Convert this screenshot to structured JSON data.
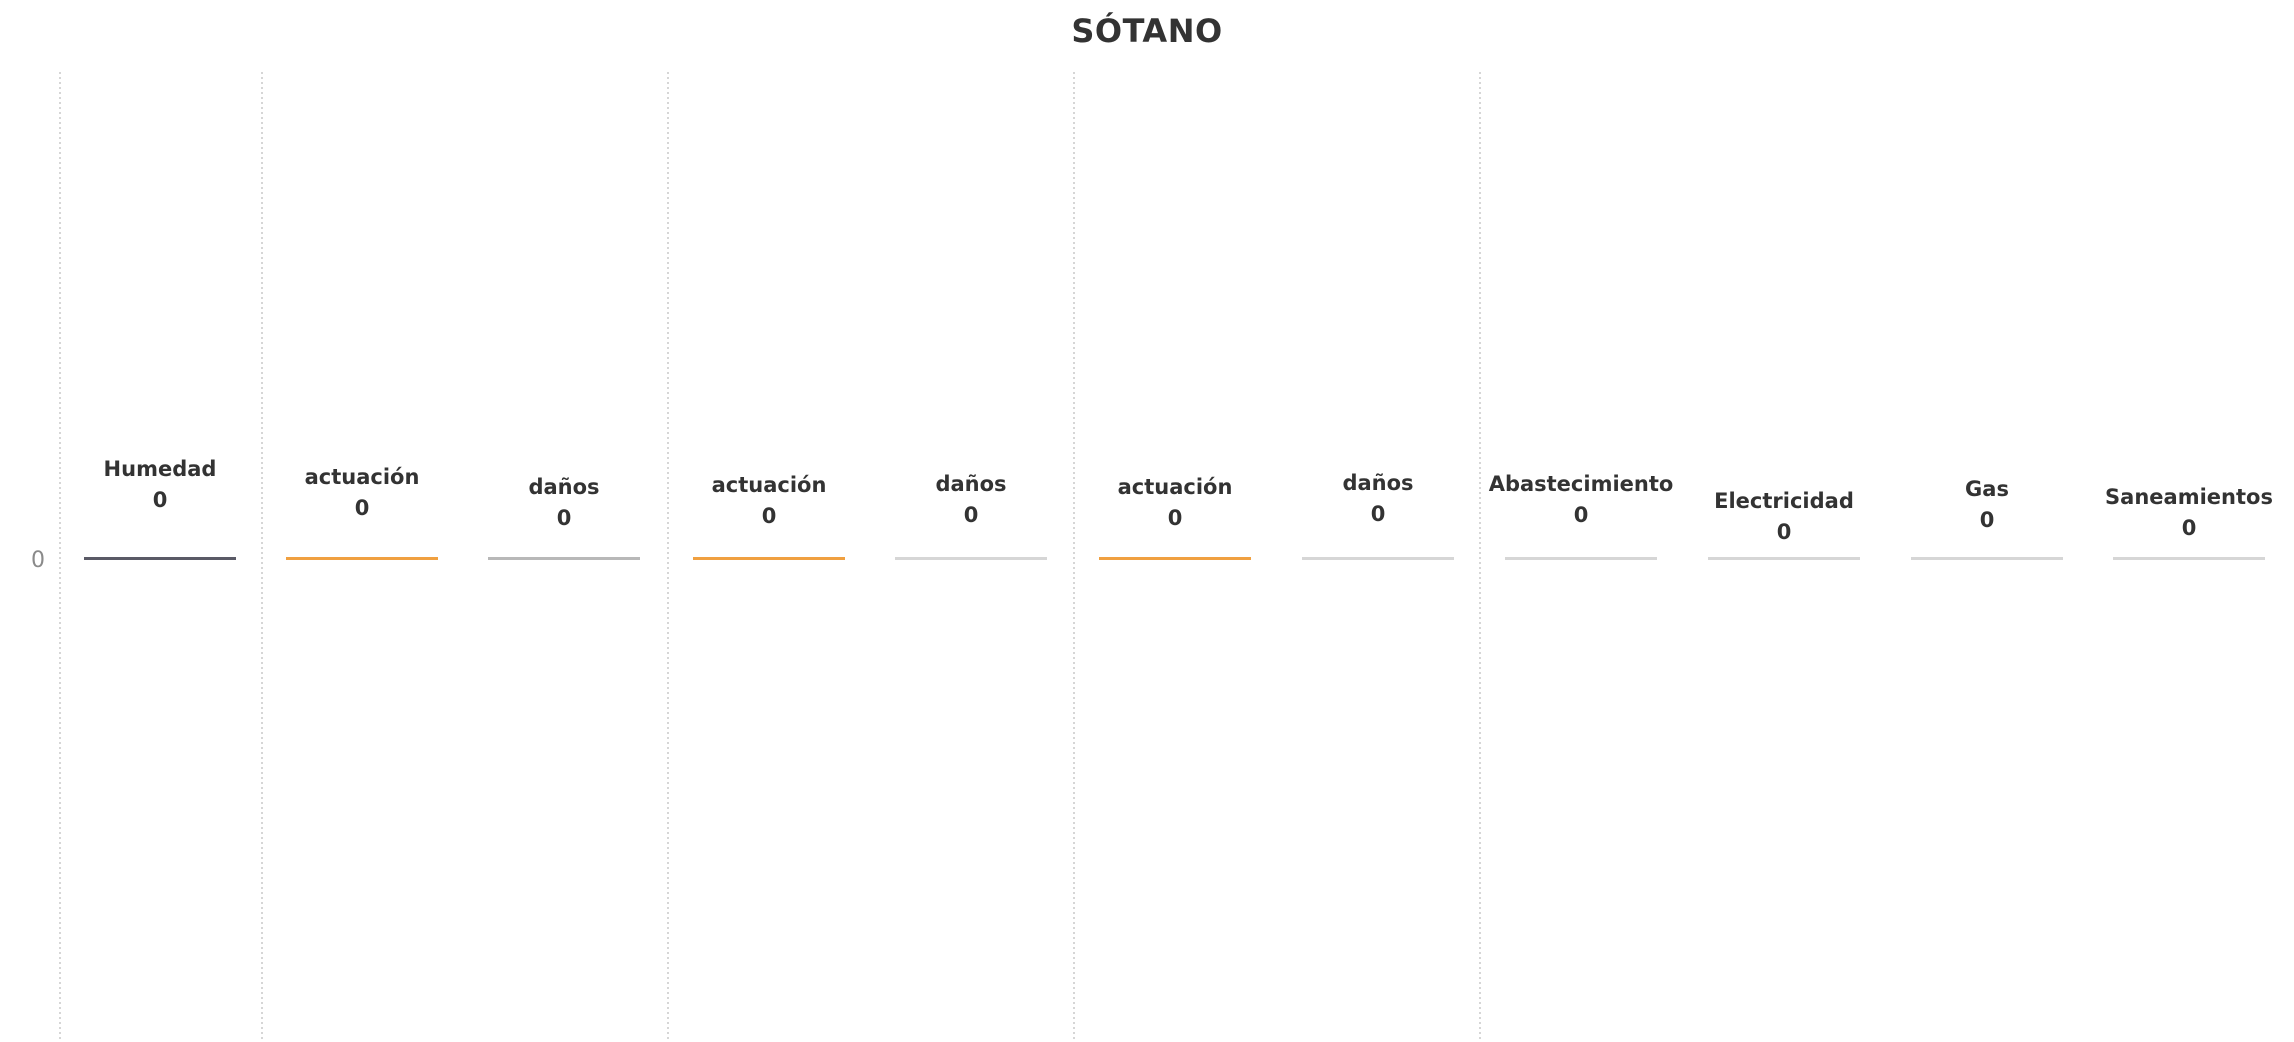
{
  "chart_data": {
    "type": "bar",
    "title": "SÓTANO",
    "xlabel": "",
    "ylabel": "",
    "y_tick_labels": [
      "0"
    ],
    "grid": false,
    "categories": [
      "Humedad",
      "actuación",
      "daños",
      "actuación",
      "daños",
      "actuación",
      "daños",
      "Abastecimiento",
      "Electricidad",
      "Gas",
      "Saneamientos"
    ],
    "values": [
      0,
      0,
      0,
      0,
      0,
      0,
      0,
      0,
      0,
      0,
      0
    ],
    "data_labels": [
      "0",
      "0",
      "0",
      "0",
      "0",
      "0",
      "0",
      "0",
      "0",
      "0",
      "0"
    ],
    "colors": [
      "#5a5a66",
      "#f0a040",
      "#b8b8b8",
      "#f0a040",
      "#d6d6d6",
      "#f0a040",
      "#d6d6d6",
      "#d6d6d6",
      "#d6d6d6",
      "#d6d6d6",
      "#d6d6d6"
    ]
  }
}
